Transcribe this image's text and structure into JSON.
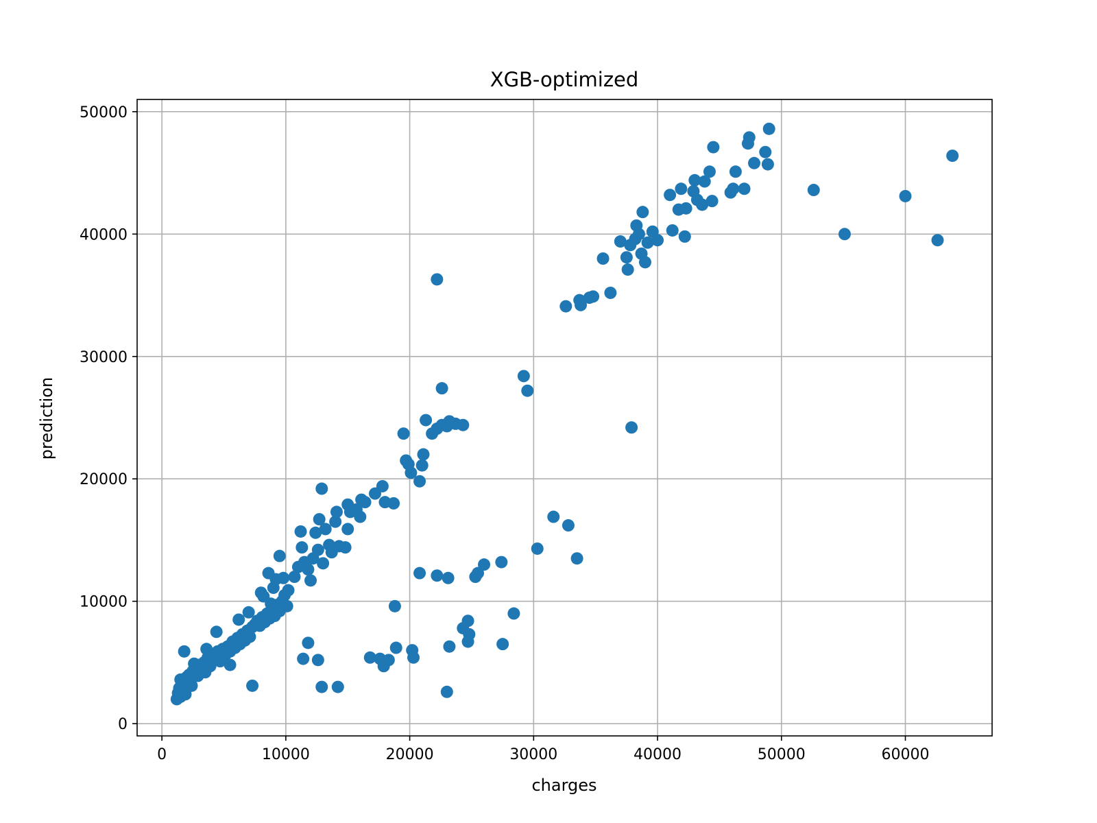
{
  "chart_data": {
    "type": "scatter",
    "title": "XGB-optimized",
    "xlabel": "charges",
    "ylabel": "prediction",
    "xlim": [
      -2000,
      67000
    ],
    "ylim": [
      -1000,
      51000
    ],
    "grid": true,
    "x_ticks": [
      0,
      10000,
      20000,
      30000,
      40000,
      50000,
      60000
    ],
    "x_tick_labels": [
      "0",
      "10000",
      "20000",
      "30000",
      "40000",
      "50000",
      "60000"
    ],
    "y_ticks": [
      0,
      10000,
      20000,
      30000,
      40000,
      50000
    ],
    "y_tick_labels": [
      "0",
      "10000",
      "20000",
      "30000",
      "40000",
      "50000"
    ],
    "marker_color": "#1f77b4",
    "series": [
      {
        "points": [
          [
            1200,
            2000
          ],
          [
            1300,
            2500
          ],
          [
            1400,
            2900
          ],
          [
            1500,
            2200
          ],
          [
            1600,
            3100
          ],
          [
            1700,
            2700
          ],
          [
            1800,
            3500
          ],
          [
            1900,
            2400
          ],
          [
            2000,
            3800
          ],
          [
            2100,
            3300
          ],
          [
            2200,
            4000
          ],
          [
            2300,
            3700
          ],
          [
            2400,
            3100
          ],
          [
            2500,
            4300
          ],
          [
            2700,
            4600
          ],
          [
            2900,
            3900
          ],
          [
            3000,
            4800
          ],
          [
            3200,
            4400
          ],
          [
            3400,
            5000
          ],
          [
            3500,
            4200
          ],
          [
            3700,
            5400
          ],
          [
            3900,
            4700
          ],
          [
            4100,
            5700
          ],
          [
            4300,
            5200
          ],
          [
            4500,
            5900
          ],
          [
            4700,
            5100
          ],
          [
            4900,
            6100
          ],
          [
            5100,
            5600
          ],
          [
            5300,
            6300
          ],
          [
            5500,
            5900
          ],
          [
            5700,
            6700
          ],
          [
            5900,
            6200
          ],
          [
            6100,
            7000
          ],
          [
            6300,
            6500
          ],
          [
            6500,
            7300
          ],
          [
            6700,
            6800
          ],
          [
            6900,
            7600
          ],
          [
            7100,
            7100
          ],
          [
            7300,
            7900
          ],
          [
            7500,
            8100
          ],
          [
            7700,
            8400
          ],
          [
            7900,
            8000
          ],
          [
            8100,
            8700
          ],
          [
            8300,
            8300
          ],
          [
            8500,
            9000
          ],
          [
            8700,
            8600
          ],
          [
            8900,
            9300
          ],
          [
            9100,
            8800
          ],
          [
            9300,
            9700
          ],
          [
            9500,
            9200
          ],
          [
            9700,
            10000
          ],
          [
            9900,
            10500
          ],
          [
            10100,
            9600
          ],
          [
            1800,
            5900
          ],
          [
            1500,
            3600
          ],
          [
            2600,
            4900
          ],
          [
            3600,
            6100
          ],
          [
            4400,
            7500
          ],
          [
            5500,
            4800
          ],
          [
            6200,
            8500
          ],
          [
            7000,
            9100
          ],
          [
            8000,
            10700
          ],
          [
            8600,
            12300
          ],
          [
            9000,
            11100
          ],
          [
            9500,
            13700
          ],
          [
            9200,
            11800
          ],
          [
            8200,
            10400
          ],
          [
            8800,
            9800
          ],
          [
            9800,
            11900
          ],
          [
            10200,
            10900
          ],
          [
            10700,
            12000
          ],
          [
            11000,
            12800
          ],
          [
            11200,
            15700
          ],
          [
            11300,
            14400
          ],
          [
            11500,
            13200
          ],
          [
            11800,
            12600
          ],
          [
            12000,
            11700
          ],
          [
            12200,
            13500
          ],
          [
            12400,
            15600
          ],
          [
            12600,
            14200
          ],
          [
            12700,
            16700
          ],
          [
            12900,
            19200
          ],
          [
            13000,
            13100
          ],
          [
            13200,
            15900
          ],
          [
            13500,
            14600
          ],
          [
            13700,
            14000
          ],
          [
            14000,
            16500
          ],
          [
            14100,
            17300
          ],
          [
            14300,
            14500
          ],
          [
            14800,
            14400
          ],
          [
            15000,
            15900
          ],
          [
            15000,
            17900
          ],
          [
            15200,
            17300
          ],
          [
            15700,
            17500
          ],
          [
            16000,
            16900
          ],
          [
            16100,
            18300
          ],
          [
            16400,
            18100
          ],
          [
            17200,
            18800
          ],
          [
            17800,
            19400
          ],
          [
            18000,
            18100
          ],
          [
            18700,
            18000
          ],
          [
            19500,
            23700
          ],
          [
            19700,
            21500
          ],
          [
            19900,
            21200
          ],
          [
            20100,
            20500
          ],
          [
            20800,
            19800
          ],
          [
            21000,
            21100
          ],
          [
            21100,
            22000
          ],
          [
            21300,
            24800
          ],
          [
            21800,
            23700
          ],
          [
            22200,
            24100
          ],
          [
            22600,
            24400
          ],
          [
            23000,
            24300
          ],
          [
            23200,
            24700
          ],
          [
            23700,
            24500
          ],
          [
            24300,
            24400
          ],
          [
            22200,
            36300
          ],
          [
            22600,
            27400
          ],
          [
            29200,
            28400
          ],
          [
            29500,
            27200
          ],
          [
            37900,
            24200
          ],
          [
            31600,
            16900
          ],
          [
            32800,
            16200
          ],
          [
            30300,
            14300
          ],
          [
            33500,
            13500
          ],
          [
            27400,
            13200
          ],
          [
            26000,
            13000
          ],
          [
            25500,
            12300
          ],
          [
            25300,
            12000
          ],
          [
            23100,
            11900
          ],
          [
            22200,
            12100
          ],
          [
            20800,
            12300
          ],
          [
            18800,
            9600
          ],
          [
            28400,
            9000
          ],
          [
            24700,
            8400
          ],
          [
            24300,
            7800
          ],
          [
            24800,
            7300
          ],
          [
            24700,
            6700
          ],
          [
            27500,
            6500
          ],
          [
            23200,
            6300
          ],
          [
            18900,
            6200
          ],
          [
            20200,
            6000
          ],
          [
            20300,
            5400
          ],
          [
            16800,
            5400
          ],
          [
            17600,
            5300
          ],
          [
            18300,
            5200
          ],
          [
            17900,
            4700
          ],
          [
            11800,
            6600
          ],
          [
            11400,
            5300
          ],
          [
            12600,
            5200
          ],
          [
            7300,
            3100
          ],
          [
            12900,
            3000
          ],
          [
            14200,
            3000
          ],
          [
            23000,
            2600
          ],
          [
            32600,
            34100
          ],
          [
            33700,
            34600
          ],
          [
            33800,
            34200
          ],
          [
            34500,
            34800
          ],
          [
            34800,
            34900
          ],
          [
            36200,
            35200
          ],
          [
            35600,
            38000
          ],
          [
            37000,
            39400
          ],
          [
            37500,
            38100
          ],
          [
            37600,
            37100
          ],
          [
            37800,
            39100
          ],
          [
            38200,
            39600
          ],
          [
            38300,
            40700
          ],
          [
            38500,
            40000
          ],
          [
            38700,
            38400
          ],
          [
            38800,
            41800
          ],
          [
            39000,
            37700
          ],
          [
            39200,
            39300
          ],
          [
            39600,
            40200
          ],
          [
            40000,
            39500
          ],
          [
            41000,
            43200
          ],
          [
            41200,
            40300
          ],
          [
            41700,
            42000
          ],
          [
            41900,
            43700
          ],
          [
            42200,
            39800
          ],
          [
            42300,
            42100
          ],
          [
            42900,
            43500
          ],
          [
            43000,
            44400
          ],
          [
            43200,
            42800
          ],
          [
            43600,
            42400
          ],
          [
            43800,
            44300
          ],
          [
            44200,
            45100
          ],
          [
            44400,
            42700
          ],
          [
            44500,
            47100
          ],
          [
            45900,
            43400
          ],
          [
            46100,
            43700
          ],
          [
            46300,
            45100
          ],
          [
            47000,
            43700
          ],
          [
            47300,
            47400
          ],
          [
            47400,
            47900
          ],
          [
            47800,
            45800
          ],
          [
            48700,
            46700
          ],
          [
            48900,
            45700
          ],
          [
            49000,
            48600
          ],
          [
            52600,
            43600
          ],
          [
            55100,
            40000
          ],
          [
            60000,
            43100
          ],
          [
            62600,
            39500
          ],
          [
            63800,
            46400
          ]
        ]
      }
    ]
  }
}
